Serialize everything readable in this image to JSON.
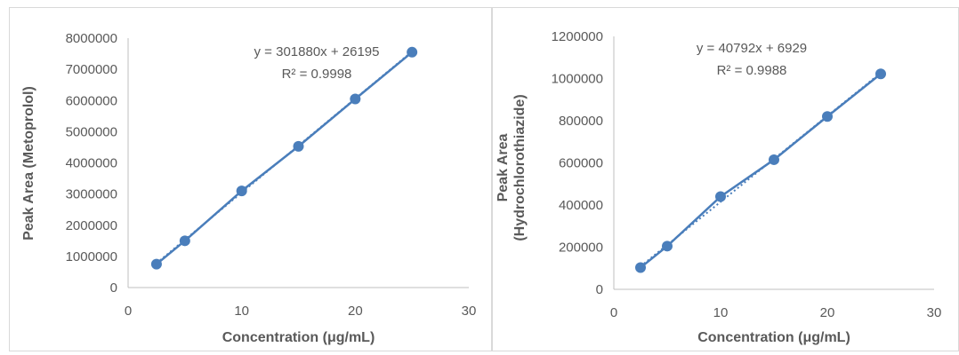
{
  "chart_data": [
    {
      "type": "scatter",
      "xlabel": "Concentration (μg/mL)",
      "ylabel": "Peak Area (Metoprolol)",
      "ylabel_lines": [
        "Peak Area (Metoprolol)"
      ],
      "xlim": [
        0,
        30
      ],
      "ylim": [
        0,
        8000000
      ],
      "xticks": [
        0,
        10,
        20,
        30
      ],
      "yticks": [
        0,
        1000000,
        2000000,
        3000000,
        4000000,
        5000000,
        6000000,
        7000000,
        8000000
      ],
      "grid": false,
      "legend": "none",
      "series": [
        {
          "x": [
            2.5,
            5,
            10,
            15,
            20,
            25
          ],
          "y": [
            750000,
            1500000,
            3100000,
            4530000,
            6050000,
            7550000
          ],
          "color": "#4a7ebb"
        }
      ],
      "trendline": {
        "slope": 301880,
        "intercept": 26195,
        "style": "dotted"
      },
      "equation": "y = 301880x + 26195",
      "r_squared": "R² = 0.9998"
    },
    {
      "type": "scatter",
      "xlabel": "Concentration (μg/mL)",
      "ylabel": "Peak Area (Hydrochlorothiazide)",
      "ylabel_lines": [
        "Peak Area",
        "(Hydrochlorothiazide)"
      ],
      "xlim": [
        0,
        30
      ],
      "ylim": [
        0,
        1200000
      ],
      "xticks": [
        0,
        10,
        20,
        30
      ],
      "yticks": [
        0,
        200000,
        400000,
        600000,
        800000,
        1000000,
        1200000
      ],
      "grid": false,
      "legend": "none",
      "series": [
        {
          "x": [
            2.5,
            5,
            10,
            15,
            20,
            25
          ],
          "y": [
            103000,
            205000,
            440000,
            615000,
            820000,
            1022000
          ],
          "color": "#4a7ebb"
        }
      ],
      "trendline": {
        "slope": 40792,
        "intercept": 6929,
        "style": "dotted"
      },
      "equation": "y = 40792x + 6929",
      "r_squared": "R² = 0.9988"
    }
  ]
}
